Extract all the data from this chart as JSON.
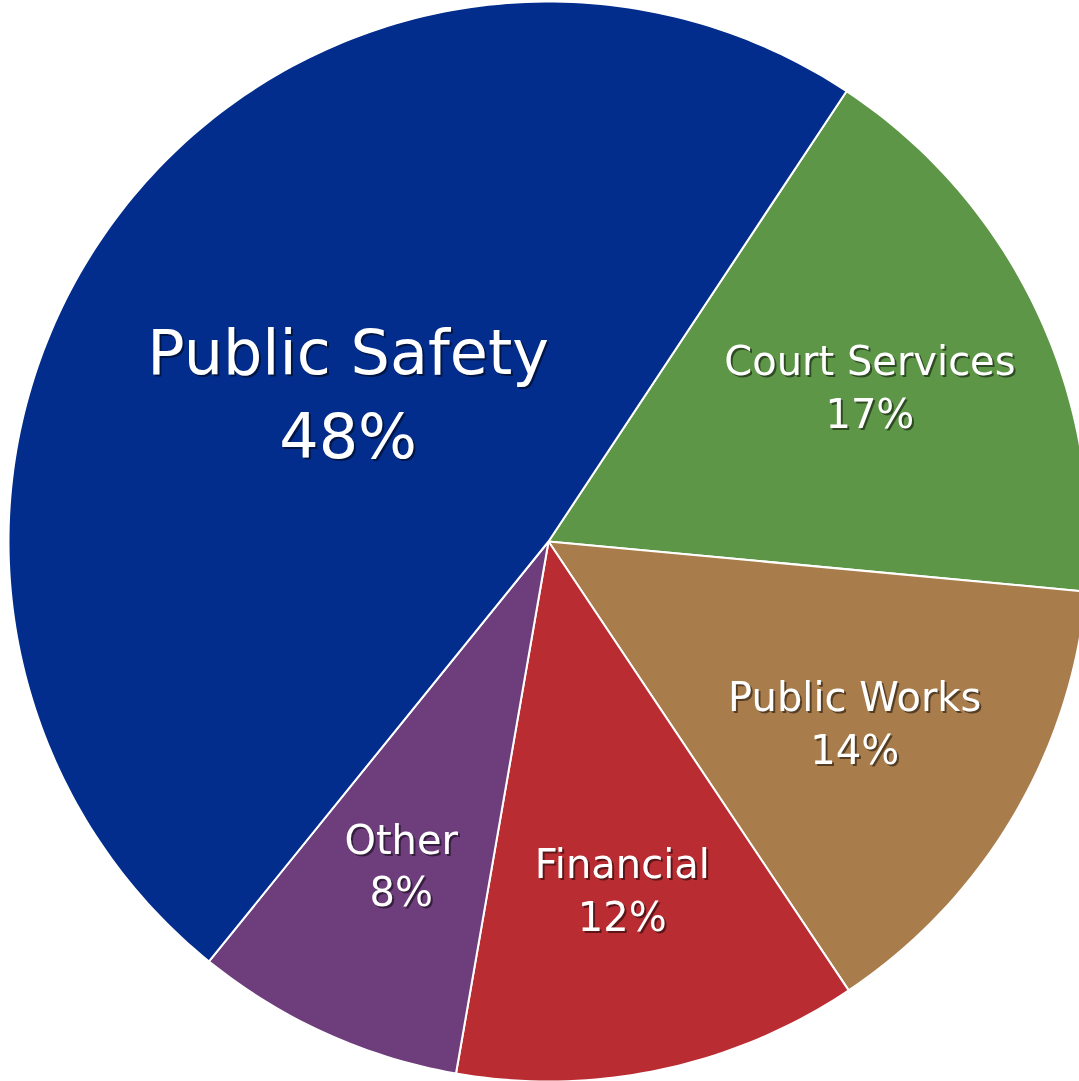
{
  "chart_data": {
    "type": "pie",
    "categories": [
      "Court Services",
      "Public Works",
      "Financial",
      "Other",
      "Public Safety"
    ],
    "values": [
      17,
      14,
      12,
      8,
      48
    ],
    "value_labels": [
      "17%",
      "14%",
      "12%",
      "8%",
      "48%"
    ],
    "colors": [
      "#5e9648",
      "#a97d4b",
      "#b92c31",
      "#6e3d7c",
      "#032d8c"
    ]
  }
}
